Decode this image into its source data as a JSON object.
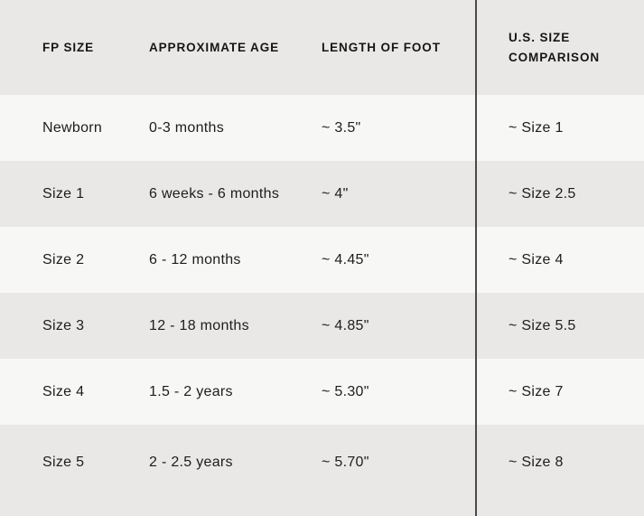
{
  "table": {
    "headers": {
      "fp_size": "FP SIZE",
      "age": "APPROXIMATE AGE",
      "foot_length": "LENGTH OF FOOT",
      "us_size": "U.S. SIZE COMPARISON"
    },
    "rows": [
      {
        "cells": [
          "Newborn",
          "0-3 months",
          "~ 3.5\"",
          "~ Size 1"
        ]
      },
      {
        "cells": [
          "Size 1",
          "6 weeks - 6 months",
          "~ 4\"",
          "~ Size 2.5"
        ]
      },
      {
        "cells": [
          "Size 2",
          "6 - 12 months",
          "~ 4.45\"",
          "~ Size 4"
        ]
      },
      {
        "cells": [
          "Size 3",
          "12 - 18 months",
          "~ 4.85\"",
          "~ Size 5.5"
        ]
      },
      {
        "cells": [
          "Size 4",
          "1.5 - 2 years",
          "~ 5.30\"",
          "~ Size 7"
        ]
      },
      {
        "cells": [
          "Size 5",
          "2 - 2.5 years",
          "~ 5.70\"",
          "~ Size 8"
        ]
      }
    ]
  },
  "colors": {
    "row_light": "#f7f7f5",
    "row_gray": "#e9e8e6",
    "divider": "#4a4a4a",
    "text": "#1d1d1d"
  }
}
